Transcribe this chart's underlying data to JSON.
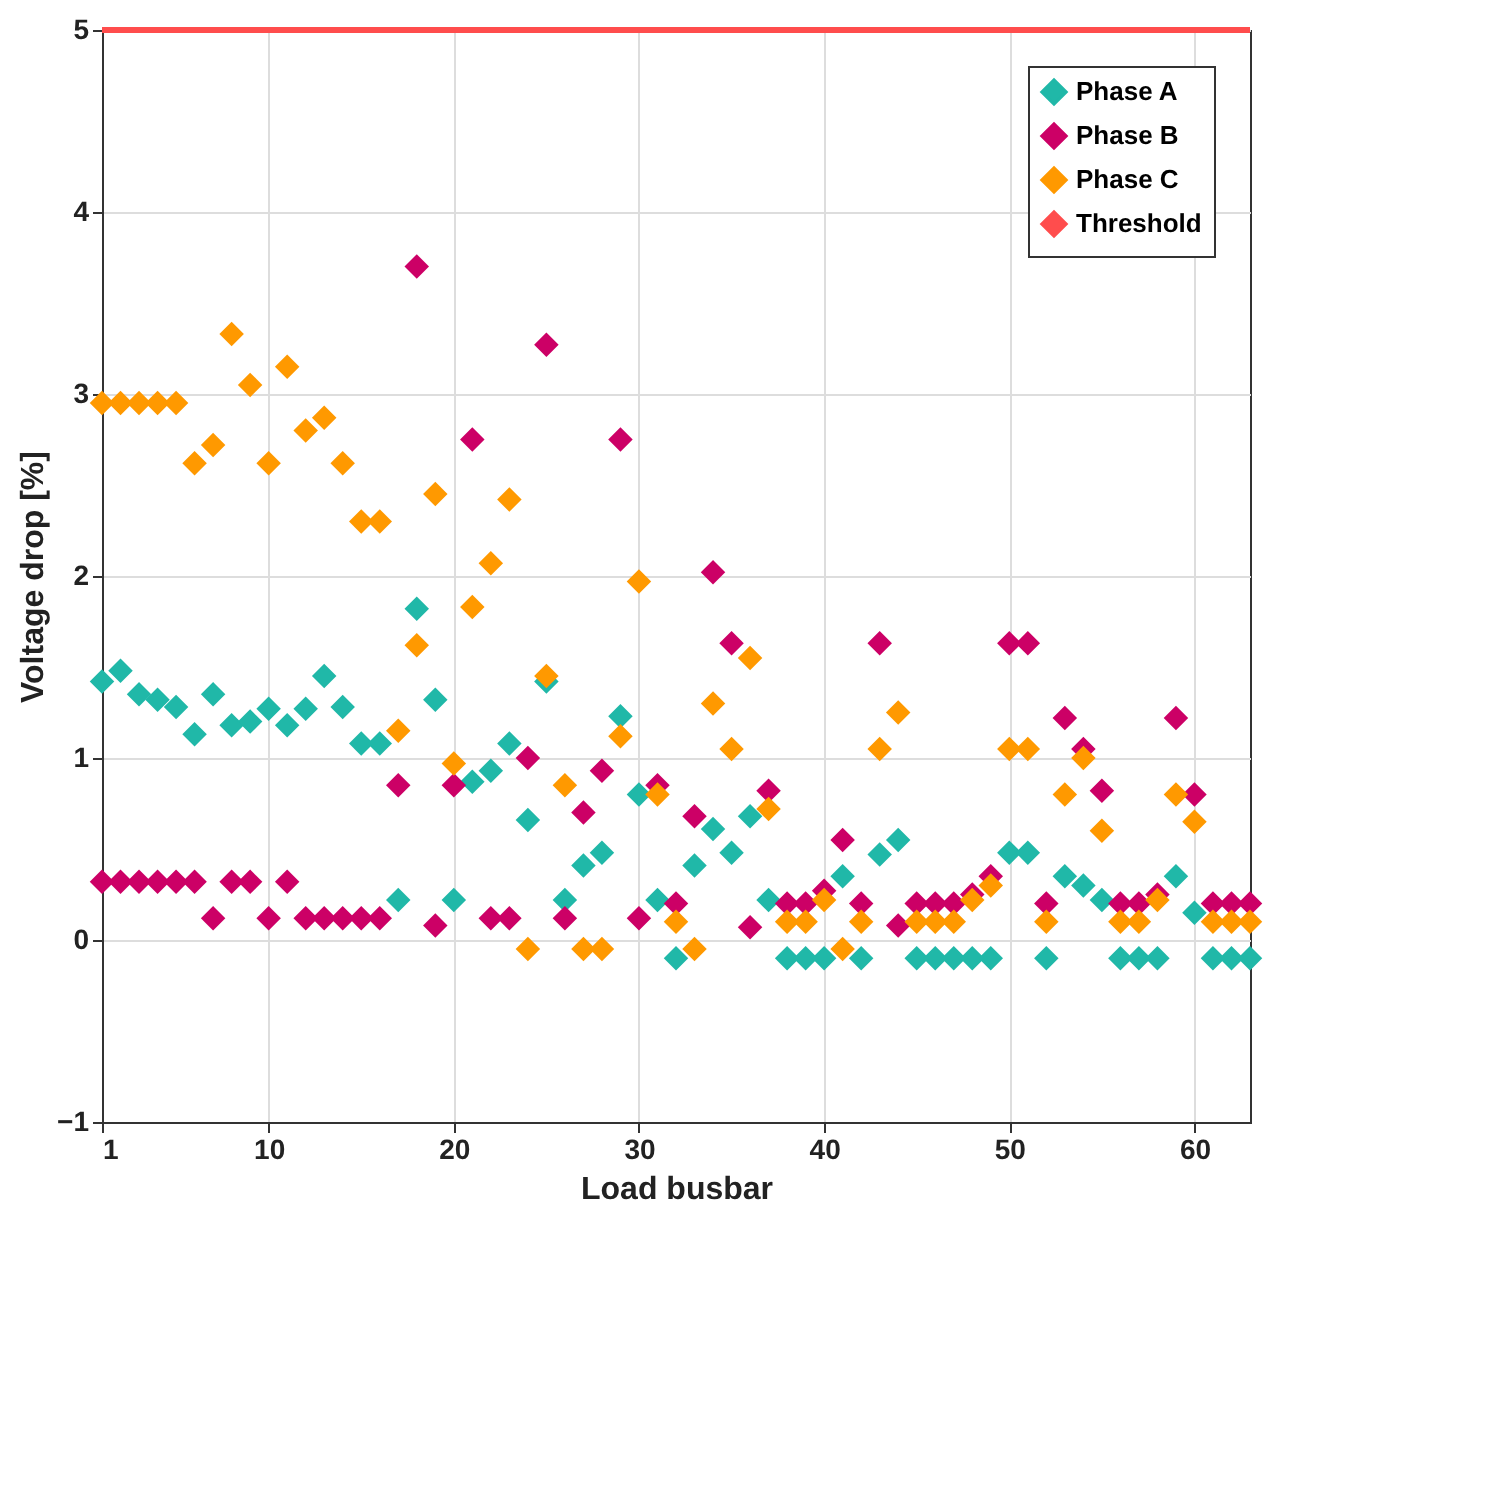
{
  "chart_data": {
    "type": "scatter",
    "xlabel": "Load busbar",
    "ylabel": "Voltage drop [%]",
    "x": [
      1,
      2,
      3,
      4,
      5,
      6,
      7,
      8,
      9,
      10,
      11,
      12,
      13,
      14,
      15,
      16,
      17,
      18,
      19,
      20,
      21,
      22,
      23,
      24,
      25,
      26,
      27,
      28,
      29,
      30,
      31,
      32,
      33,
      34,
      35,
      36,
      37,
      38,
      39,
      40,
      41,
      42,
      43,
      44,
      45,
      46,
      47,
      48,
      49,
      50,
      51,
      52,
      53,
      54,
      55,
      56,
      57,
      58,
      59,
      60,
      61,
      62,
      63
    ],
    "series": [
      {
        "name": "Phase A",
        "color": "#20b8a8",
        "values": [
          1.42,
          1.48,
          1.35,
          1.32,
          1.28,
          1.13,
          1.35,
          1.18,
          1.2,
          1.27,
          1.18,
          1.27,
          1.45,
          1.28,
          1.08,
          1.08,
          0.22,
          1.82,
          1.32,
          0.22,
          0.87,
          0.93,
          1.08,
          0.66,
          1.42,
          0.22,
          0.41,
          0.48,
          1.23,
          0.8,
          0.22,
          -0.1,
          0.41,
          0.61,
          0.48,
          0.68,
          0.22,
          -0.1,
          -0.1,
          -0.1,
          0.35,
          -0.1,
          0.47,
          0.55,
          -0.1,
          -0.1,
          -0.1,
          -0.1,
          -0.1,
          0.48,
          0.48,
          -0.1,
          0.35,
          0.3,
          0.22,
          -0.1,
          -0.1,
          -0.1,
          0.35,
          0.15,
          -0.1,
          -0.1,
          -0.1
        ]
      },
      {
        "name": "Phase B",
        "color": "#cc0066",
        "values": [
          0.32,
          0.32,
          0.32,
          0.32,
          0.32,
          0.32,
          0.12,
          0.32,
          0.32,
          0.12,
          0.32,
          0.12,
          0.12,
          0.12,
          0.12,
          0.12,
          0.85,
          3.7,
          0.08,
          0.85,
          2.75,
          0.12,
          0.12,
          1.0,
          3.27,
          0.12,
          0.7,
          0.93,
          2.75,
          0.12,
          0.85,
          0.2,
          0.68,
          2.02,
          1.63,
          0.07,
          0.82,
          0.2,
          0.2,
          0.27,
          0.55,
          0.2,
          1.63,
          0.08,
          0.2,
          0.2,
          0.2,
          0.25,
          0.35,
          1.63,
          1.63,
          0.2,
          1.22,
          1.05,
          0.82,
          0.2,
          0.2,
          0.25,
          1.22,
          0.8,
          0.2,
          0.2,
          0.2
        ]
      },
      {
        "name": "Phase C",
        "color": "#ff9900",
        "values": [
          2.95,
          2.95,
          2.95,
          2.95,
          2.95,
          2.62,
          2.72,
          3.33,
          3.05,
          2.62,
          3.15,
          2.8,
          2.87,
          2.62,
          2.3,
          2.3,
          1.15,
          1.62,
          2.45,
          0.97,
          1.83,
          2.07,
          2.42,
          -0.05,
          1.45,
          0.85,
          -0.05,
          -0.05,
          1.12,
          1.97,
          0.8,
          0.1,
          -0.05,
          1.3,
          1.05,
          1.55,
          0.72,
          0.1,
          0.1,
          0.22,
          -0.05,
          0.1,
          1.05,
          1.25,
          0.1,
          0.1,
          0.1,
          0.22,
          0.3,
          1.05,
          1.05,
          0.1,
          0.8,
          1.0,
          0.6,
          0.1,
          0.1,
          0.22,
          0.8,
          0.65,
          0.1,
          0.1,
          0.1
        ]
      }
    ],
    "ref_lines": [
      {
        "axis": "y",
        "value": 5,
        "label": "Threshold",
        "color": "#ff4d4d"
      }
    ],
    "xlim": [
      1,
      63
    ],
    "xticks": [
      1,
      10,
      20,
      30,
      40,
      50,
      60
    ],
    "ylim": [
      -1,
      5
    ],
    "yticks": [
      -1,
      0,
      1,
      2,
      3,
      4,
      5
    ],
    "grid": true,
    "legend": "top right",
    "marker": "diamond"
  }
}
